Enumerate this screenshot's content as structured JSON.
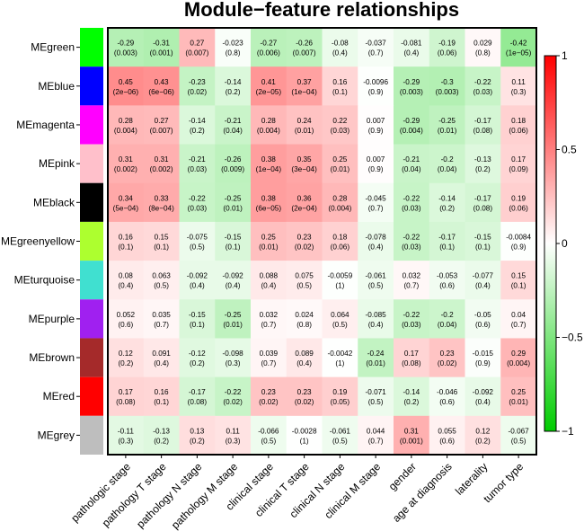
{
  "chart_data": {
    "type": "heatmap",
    "title": "Module−feature relationships",
    "rows": [
      "MEgreen",
      "MEblue",
      "MEmagenta",
      "MEpink",
      "MEblack",
      "MEgreenyellow",
      "MEturquoise",
      "MEpurple",
      "MEbrown",
      "MEred",
      "MEgrey"
    ],
    "row_colors": [
      "#00FF00",
      "#0000FF",
      "#FF00FF",
      "#FFC0CB",
      "#000000",
      "#ADFF2F",
      "#40E0D0",
      "#A020F0",
      "#A52A2A",
      "#FF0000",
      "#BEBEBE"
    ],
    "columns": [
      "pathologic stage",
      "pathology T stage",
      "pathology N stage",
      "pathology M stage",
      "clinical stage",
      "clinical T stage",
      "clinical N stage",
      "clinical M stage",
      "gender",
      "age at diagnosis",
      "laterality",
      "tumor type"
    ],
    "values": [
      [
        -0.29,
        -0.31,
        0.27,
        -0.023,
        -0.27,
        -0.26,
        -0.08,
        -0.037,
        -0.081,
        -0.19,
        0.029,
        -0.42
      ],
      [
        0.45,
        0.43,
        -0.23,
        -0.14,
        0.41,
        0.37,
        0.16,
        -0.0096,
        -0.29,
        -0.3,
        -0.22,
        0.11
      ],
      [
        0.28,
        0.27,
        -0.14,
        -0.21,
        0.28,
        0.24,
        0.22,
        0.007,
        -0.29,
        -0.25,
        -0.17,
        0.18
      ],
      [
        0.31,
        0.31,
        -0.21,
        -0.26,
        0.38,
        0.35,
        0.25,
        0.007,
        -0.21,
        -0.2,
        -0.13,
        0.17
      ],
      [
        0.34,
        0.33,
        -0.22,
        -0.25,
        0.38,
        0.36,
        0.28,
        -0.045,
        -0.22,
        -0.14,
        -0.17,
        0.19
      ],
      [
        0.16,
        0.15,
        -0.075,
        -0.15,
        0.25,
        0.23,
        0.18,
        -0.078,
        -0.22,
        -0.17,
        -0.15,
        -0.0084
      ],
      [
        0.08,
        0.063,
        -0.092,
        -0.092,
        0.088,
        0.075,
        -0.0059,
        -0.061,
        0.032,
        -0.053,
        -0.077,
        0.15
      ],
      [
        0.052,
        0.035,
        -0.15,
        -0.25,
        0.032,
        0.024,
        0.064,
        -0.085,
        -0.22,
        -0.2,
        -0.05,
        0.04
      ],
      [
        0.12,
        0.091,
        -0.12,
        -0.098,
        0.039,
        0.089,
        -0.0042,
        -0.24,
        0.17,
        0.23,
        -0.015,
        0.29
      ],
      [
        0.17,
        0.16,
        -0.17,
        -0.22,
        0.23,
        0.23,
        0.19,
        -0.071,
        -0.14,
        -0.046,
        -0.092,
        0.25
      ],
      [
        -0.11,
        -0.13,
        0.13,
        0.11,
        -0.066,
        -0.0028,
        -0.061,
        0.044,
        0.31,
        0.055,
        0.12,
        -0.067
      ]
    ],
    "labels": [
      [
        "-0.29",
        "-0.31",
        "0.27",
        "-0.023",
        "-0.27",
        "-0.26",
        "-0.08",
        "-0.037",
        "-0.081",
        "-0.19",
        "0.029",
        "-0.42"
      ],
      [
        "0.45",
        "0.43",
        "-0.23",
        "-0.14",
        "0.41",
        "0.37",
        "0.16",
        "-0.0096",
        "-0.29",
        "-0.3",
        "-0.22",
        "0.11"
      ],
      [
        "0.28",
        "0.27",
        "-0.14",
        "-0.21",
        "0.28",
        "0.24",
        "0.22",
        "0.007",
        "-0.29",
        "-0.25",
        "-0.17",
        "0.18"
      ],
      [
        "0.31",
        "0.31",
        "-0.21",
        "-0.26",
        "0.38",
        "0.35",
        "0.25",
        "0.007",
        "-0.21",
        "-0.2",
        "-0.13",
        "0.17"
      ],
      [
        "0.34",
        "0.33",
        "-0.22",
        "-0.25",
        "0.38",
        "0.36",
        "0.28",
        "-0.045",
        "-0.22",
        "-0.14",
        "-0.17",
        "0.19"
      ],
      [
        "0.16",
        "0.15",
        "-0.075",
        "-0.15",
        "0.25",
        "0.23",
        "0.18",
        "-0.078",
        "-0.22",
        "-0.17",
        "-0.15",
        "-0.0084"
      ],
      [
        "0.08",
        "0.063",
        "-0.092",
        "-0.092",
        "0.088",
        "0.075",
        "-0.0059",
        "-0.061",
        "0.032",
        "-0.053",
        "-0.077",
        "0.15"
      ],
      [
        "0.052",
        "0.035",
        "-0.15",
        "-0.25",
        "0.032",
        "0.024",
        "0.064",
        "-0.085",
        "-0.22",
        "-0.2",
        "-0.05",
        "0.04"
      ],
      [
        "0.12",
        "0.091",
        "-0.12",
        "-0.098",
        "0.039",
        "0.089",
        "-0.0042",
        "-0.24",
        "0.17",
        "0.23",
        "-0.015",
        "0.29"
      ],
      [
        "0.17",
        "0.16",
        "-0.17",
        "-0.22",
        "0.23",
        "0.23",
        "0.19",
        "-0.071",
        "-0.14",
        "-0.046",
        "-0.092",
        "0.25"
      ],
      [
        "-0.11",
        "-0.13",
        "0.13",
        "0.11",
        "-0.066",
        "-0.0028",
        "-0.061",
        "0.044",
        "0.31",
        "0.055",
        "0.12",
        "-0.067"
      ]
    ],
    "pvalues": [
      [
        "(0.003)",
        "(0.001)",
        "(0.007)",
        "(0.8)",
        "(0.006)",
        "(0.007)",
        "(0.4)",
        "(0.7)",
        "(0.4)",
        "(0.06)",
        "(0.8)",
        "(1e−05)"
      ],
      [
        "(2e−06)",
        "(6e−06)",
        "(0.02)",
        "(0.2)",
        "(2e−05)",
        "(1e−04)",
        "(0.1)",
        "(0.9)",
        "(0.003)",
        "(0.003)",
        "(0.03)",
        "(0.3)"
      ],
      [
        "(0.004)",
        "(0.007)",
        "(0.2)",
        "(0.04)",
        "(0.004)",
        "(0.01)",
        "(0.03)",
        "(0.9)",
        "(0.004)",
        "(0.01)",
        "(0.08)",
        "(0.06)"
      ],
      [
        "(0.002)",
        "(0.002)",
        "(0.03)",
        "(0.009)",
        "(1e−04)",
        "(3e−04)",
        "(0.01)",
        "(0.9)",
        "(0.04)",
        "(0.04)",
        "(0.2)",
        "(0.09)"
      ],
      [
        "(5e−04)",
        "(8e−04)",
        "(0.03)",
        "(0.01)",
        "(6e−05)",
        "(2e−04)",
        "(0.004)",
        "(0.7)",
        "(0.03)",
        "(0.2)",
        "(0.08)",
        "(0.06)"
      ],
      [
        "(0.1)",
        "(0.1)",
        "(0.5)",
        "(0.1)",
        "(0.01)",
        "(0.02)",
        "(0.06)",
        "(0.4)",
        "(0.03)",
        "(0.1)",
        "(0.1)",
        "(0.9)"
      ],
      [
        "(0.4)",
        "(0.5)",
        "(0.4)",
        "(0.4)",
        "(0.4)",
        "(0.5)",
        "(1)",
        "(0.5)",
        "(0.7)",
        "(0.6)",
        "(0.4)",
        "(0.1)"
      ],
      [
        "(0.6)",
        "(0.7)",
        "(0.1)",
        "(0.01)",
        "(0.7)",
        "(0.8)",
        "(0.5)",
        "(0.4)",
        "(0.03)",
        "(0.04)",
        "(0.6)",
        "(0.7)"
      ],
      [
        "(0.2)",
        "(0.4)",
        "(0.2)",
        "(0.3)",
        "(0.7)",
        "(0.4)",
        "(1)",
        "(0.01)",
        "(0.08)",
        "(0.02)",
        "(0.9)",
        "(0.004)"
      ],
      [
        "(0.08)",
        "(0.1)",
        "(0.08)",
        "(0.02)",
        "(0.02)",
        "(0.02)",
        "(0.05)",
        "(0.5)",
        "(0.2)",
        "(0.6)",
        "(0.4)",
        "(0.01)"
      ],
      [
        "(0.3)",
        "(0.2)",
        "(0.2)",
        "(0.3)",
        "(0.5)",
        "(1)",
        "(0.5)",
        "(0.7)",
        "(0.001)",
        "(0.6)",
        "(0.2)",
        "(0.5)"
      ]
    ],
    "colorscale": {
      "low": "#00CC00",
      "mid": "#FFFFFF",
      "high": "#FF0000",
      "range": [
        -1,
        1
      ]
    },
    "colorbar_ticks": [
      1,
      0.5,
      0,
      -0.5,
      -1
    ],
    "colorbar_tick_labels": [
      "1",
      "0.5",
      "0",
      "−0.5",
      "−1"
    ]
  }
}
